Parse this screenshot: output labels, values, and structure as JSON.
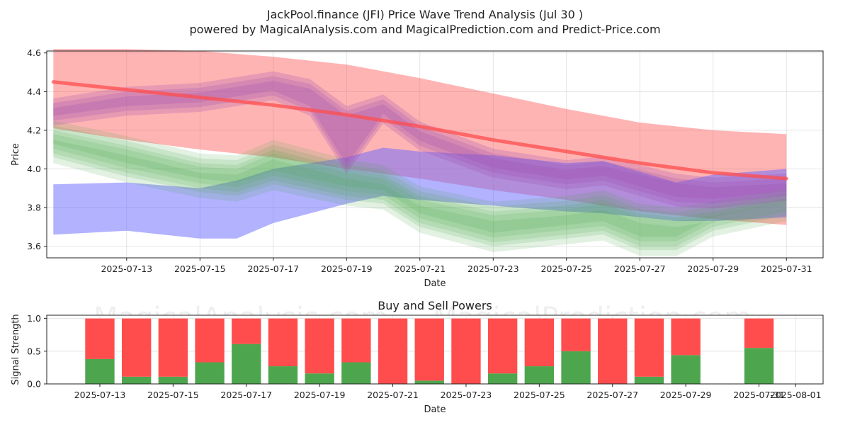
{
  "title_line1": "JackPool.finance (JFI) Price Wave Trend Analysis (Jul 30 )",
  "title_line2": "powered by MagicalAnalysis.com and MagicalPrediction.com and Predict-Price.com",
  "watermarks": [
    "MagicalAnalysis.com",
    "MagicalPrediction.com"
  ],
  "colors": {
    "red": "#ff4d4d",
    "blue": "#6666ff",
    "green": "#4da64d",
    "purple": "#a050b0",
    "buy": "#4da64d",
    "sell": "#ff4d4d"
  },
  "chart_data": [
    {
      "type": "area",
      "title": "",
      "xlabel": "Date",
      "ylabel": "Price",
      "ylim": [
        3.54,
        4.61
      ],
      "xlim": [
        "2025-07-11",
        "2025-08-01"
      ],
      "grid": true,
      "x_ticks": [
        "2025-07-13",
        "2025-07-15",
        "2025-07-17",
        "2025-07-19",
        "2025-07-21",
        "2025-07-23",
        "2025-07-25",
        "2025-07-27",
        "2025-07-29",
        "2025-07-31"
      ],
      "y_ticks": [
        "3.6",
        "3.8",
        "4.0",
        "4.2",
        "4.4",
        "4.6"
      ],
      "series": [
        {
          "color": "red",
          "x": [
            "2025-07-11",
            "2025-07-13",
            "2025-07-15",
            "2025-07-17",
            "2025-07-19",
            "2025-07-21",
            "2025-07-23",
            "2025-07-25",
            "2025-07-27",
            "2025-07-29",
            "2025-07-31"
          ],
          "center": [
            4.45,
            4.41,
            4.37,
            4.33,
            4.28,
            4.22,
            4.15,
            4.09,
            4.03,
            3.98,
            3.95
          ],
          "upper": [
            4.62,
            4.62,
            4.61,
            4.58,
            4.54,
            4.47,
            4.39,
            4.31,
            4.24,
            4.2,
            4.18
          ],
          "lower": [
            4.21,
            4.15,
            4.1,
            4.06,
            4.0,
            3.95,
            3.89,
            3.84,
            3.78,
            3.74,
            3.71
          ]
        },
        {
          "color": "blue",
          "x": [
            "2025-07-11",
            "2025-07-13",
            "2025-07-15",
            "2025-07-16",
            "2025-07-17",
            "2025-07-19",
            "2025-07-20",
            "2025-07-21",
            "2025-07-23",
            "2025-07-25",
            "2025-07-26",
            "2025-07-28",
            "2025-07-29",
            "2025-07-31"
          ],
          "upper": [
            3.92,
            3.93,
            3.9,
            3.94,
            4.0,
            4.06,
            4.11,
            4.09,
            4.07,
            4.03,
            4.04,
            3.93,
            3.97,
            4.0
          ],
          "lower": [
            3.66,
            3.68,
            3.64,
            3.64,
            3.72,
            3.82,
            3.86,
            3.84,
            3.81,
            3.78,
            3.77,
            3.73,
            3.73,
            3.75
          ]
        },
        {
          "color": "green",
          "x": [
            "2025-07-11",
            "2025-07-13",
            "2025-07-15",
            "2025-07-16",
            "2025-07-17",
            "2025-07-19",
            "2025-07-20",
            "2025-07-21",
            "2025-07-23",
            "2025-07-25",
            "2025-07-26",
            "2025-07-27",
            "2025-07-28",
            "2025-07-29",
            "2025-07-31"
          ],
          "upper": [
            4.2,
            4.12,
            4.03,
            4.02,
            4.1,
            4.0,
            3.97,
            3.86,
            3.78,
            3.81,
            3.84,
            3.77,
            3.75,
            3.78,
            3.85
          ],
          "lower": [
            4.08,
            3.98,
            3.9,
            3.88,
            3.94,
            3.86,
            3.84,
            3.72,
            3.62,
            3.66,
            3.68,
            3.6,
            3.6,
            3.7,
            3.78
          ]
        },
        {
          "color": "purple",
          "x": [
            "2025-07-11",
            "2025-07-13",
            "2025-07-15",
            "2025-07-17",
            "2025-07-18",
            "2025-07-19",
            "2025-07-20",
            "2025-07-21",
            "2025-07-23",
            "2025-07-25",
            "2025-07-26",
            "2025-07-28",
            "2025-07-29",
            "2025-07-31"
          ],
          "upper": [
            4.34,
            4.4,
            4.42,
            4.48,
            4.44,
            4.3,
            4.36,
            4.22,
            4.08,
            4.02,
            4.04,
            3.95,
            3.93,
            3.95
          ],
          "lower": [
            4.25,
            4.3,
            4.32,
            4.38,
            4.3,
            4.0,
            4.26,
            4.12,
            3.98,
            3.92,
            3.94,
            3.83,
            3.82,
            3.86
          ]
        }
      ]
    },
    {
      "type": "bar",
      "title": "Buy and Sell Powers",
      "xlabel": "Date",
      "ylabel": "Signal Strength",
      "ylim": [
        0,
        1.05
      ],
      "grid": true,
      "x_ticks": [
        "2025-07-13",
        "2025-07-15",
        "2025-07-17",
        "2025-07-19",
        "2025-07-21",
        "2025-07-23",
        "2025-07-25",
        "2025-07-27",
        "2025-07-29",
        "2025-07-31",
        "2025-08-01"
      ],
      "y_ticks": [
        "0.0",
        "0.5",
        "1.0"
      ],
      "categories": [
        "2025-07-13",
        "2025-07-14",
        "2025-07-15",
        "2025-07-16",
        "2025-07-17",
        "2025-07-18",
        "2025-07-19",
        "2025-07-20",
        "2025-07-21",
        "2025-07-22",
        "2025-07-23",
        "2025-07-24",
        "2025-07-25",
        "2025-07-26",
        "2025-07-27",
        "2025-07-28",
        "2025-07-29",
        "2025-07-31"
      ],
      "series": [
        {
          "color": "buy",
          "values": [
            0.38,
            0.11,
            0.11,
            0.33,
            0.61,
            0.27,
            0.16,
            0.33,
            0.0,
            0.05,
            0.0,
            0.16,
            0.27,
            0.5,
            0.0,
            0.11,
            0.44,
            0.55
          ]
        },
        {
          "color": "sell",
          "values": [
            0.62,
            0.89,
            0.89,
            0.67,
            0.39,
            0.73,
            0.84,
            0.67,
            1.0,
            0.95,
            1.0,
            0.84,
            0.73,
            0.5,
            1.0,
            0.89,
            0.56,
            0.45
          ]
        }
      ]
    }
  ]
}
